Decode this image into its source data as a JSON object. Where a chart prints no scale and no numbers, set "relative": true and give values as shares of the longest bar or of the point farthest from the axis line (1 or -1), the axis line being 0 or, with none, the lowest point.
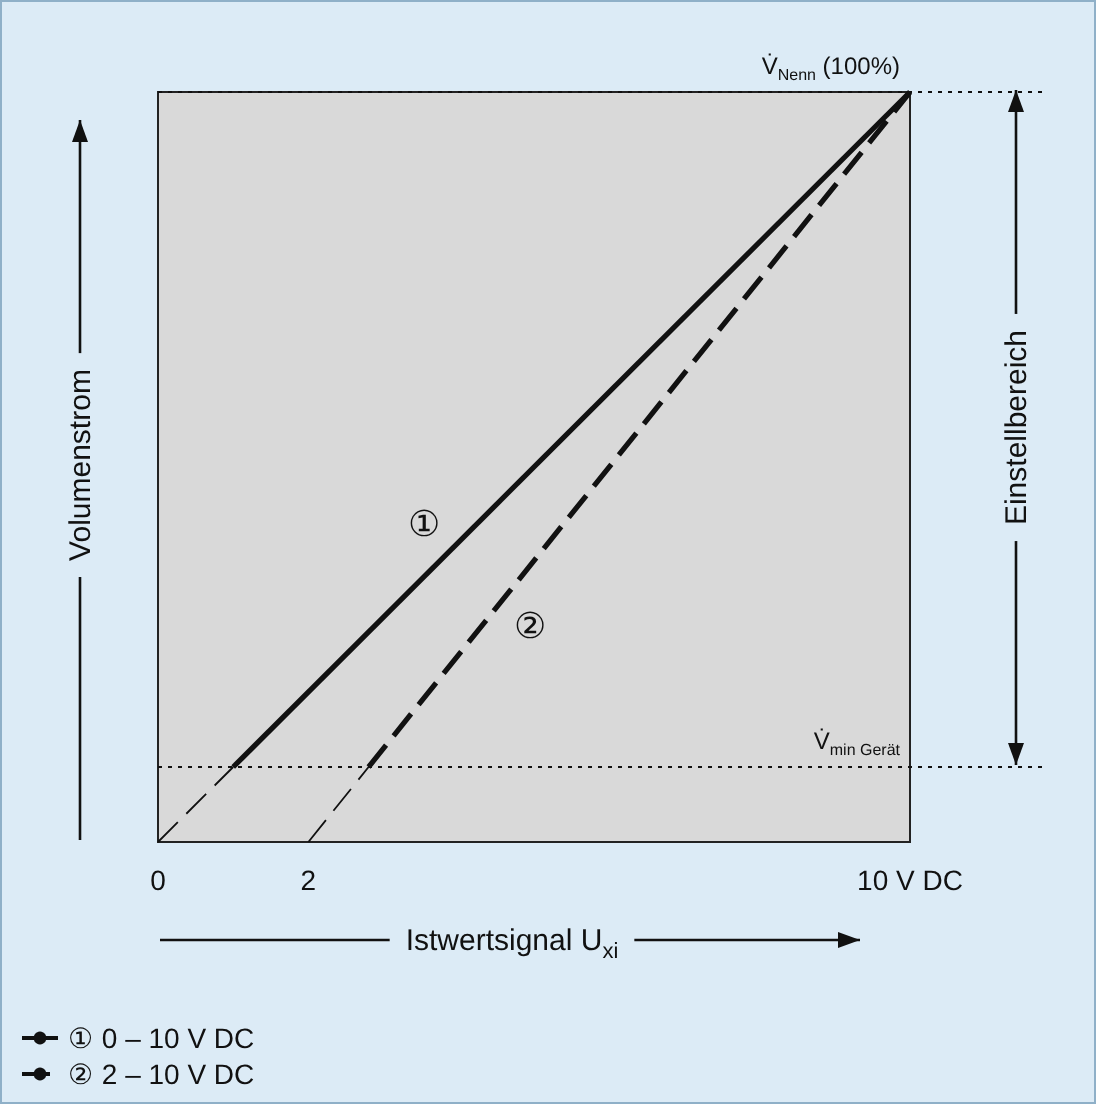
{
  "chart_data": {
    "type": "line",
    "relative": true,
    "xlabel": "Istwertsignal U$_{xi}$",
    "ylabel": "Volumenstrom",
    "xlim": [
      0,
      10
    ],
    "xticks": [
      0,
      2,
      {
        "value": 10,
        "label": "10 V DC"
      }
    ],
    "grid": false,
    "legend": "bottom left",
    "series": [
      {
        "name": "① 0 – 10 V DC",
        "color": "#111111",
        "line_style": "solid",
        "x": [
          1,
          10
        ],
        "values": [
          0.1,
          1
        ]
      },
      {
        "name": "② 2 – 10 V DC",
        "color": "#111111",
        "line_style": "dashed",
        "x": [
          2.8,
          10
        ],
        "values": [
          0.1,
          1
        ]
      },
      {
        "color": "#111111",
        "line_style": "dashed",
        "x": [
          0,
          1
        ],
        "values": [
          0,
          0.1
        ]
      },
      {
        "color": "#111111",
        "line_style": "dashed",
        "x": [
          2,
          2.8
        ],
        "values": [
          0,
          0.1
        ]
      }
    ],
    "ref_lines": [
      {
        "axis": "y",
        "value": 1,
        "label": "V̇$_{Nenn}$ (100%)",
        "line_style": "dotted"
      },
      {
        "axis": "y",
        "value": 0.1,
        "label": "V̇$_{min Gerät}$",
        "line_style": "dotted"
      }
    ],
    "annotations": [
      "①",
      "②",
      "Einstellbereich"
    ]
  }
}
